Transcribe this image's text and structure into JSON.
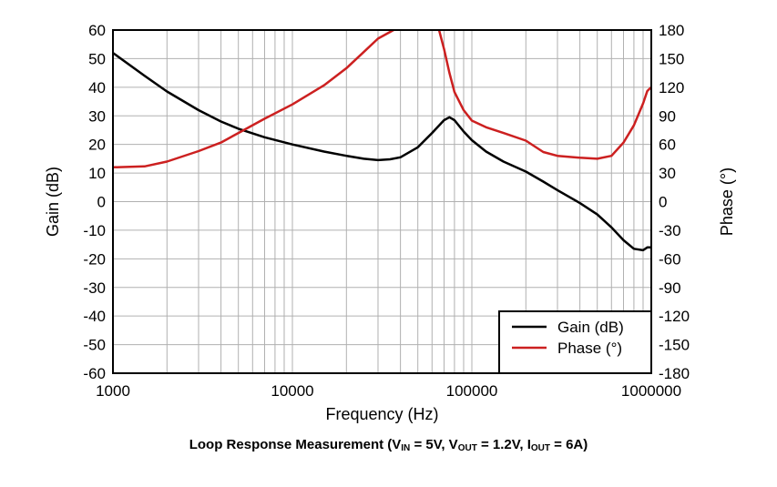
{
  "chart_data": {
    "type": "line",
    "x_scale": "log",
    "xlabel": "Frequency (Hz)",
    "ylabel": "Gain (dB)",
    "y2label": "Phase (°)",
    "xlim": [
      1000,
      1000000
    ],
    "ylim": [
      -60,
      60
    ],
    "y2lim": [
      -180,
      180
    ],
    "x_ticks": [
      1000,
      10000,
      100000,
      1000000
    ],
    "x_tick_labels": [
      "1000",
      "10000",
      "100000",
      "1000000"
    ],
    "y_ticks": [
      60,
      50,
      40,
      30,
      20,
      10,
      0,
      -10,
      -20,
      -30,
      -40,
      -50,
      -60
    ],
    "y_tick_labels": [
      "60",
      "50",
      "40",
      "30",
      "20",
      "10",
      "0",
      "-10",
      "-20",
      "-30",
      "-40",
      "-50",
      "-60"
    ],
    "y2_ticks": [
      180,
      150,
      120,
      90,
      60,
      30,
      0,
      -30,
      -60,
      -90,
      -120,
      -150,
      -180
    ],
    "y2_tick_labels": [
      "180",
      "150",
      "120",
      "90",
      "60",
      "30",
      "0",
      "-30",
      "-60",
      "-90",
      "-120",
      "-150",
      "-180"
    ],
    "grid": true,
    "legend_position": "bottom-right",
    "series": [
      {
        "name": "Gain (dB)",
        "axis": "left",
        "color": "#000000",
        "x": [
          1000,
          1500,
          2000,
          3000,
          4000,
          5000,
          7000,
          10000,
          15000,
          20000,
          25000,
          30000,
          35000,
          40000,
          50000,
          60000,
          70000,
          75000,
          80000,
          90000,
          100000,
          120000,
          150000,
          200000,
          250000,
          300000,
          400000,
          500000,
          600000,
          700000,
          800000,
          900000,
          950000,
          1000000
        ],
        "y": [
          52,
          44,
          38.5,
          32,
          28,
          25.5,
          22.5,
          20,
          17.5,
          16,
          15,
          14.5,
          14.8,
          15.5,
          19,
          24,
          28.5,
          29.5,
          28.5,
          24.5,
          21.5,
          17.5,
          14,
          10.5,
          7,
          4,
          -0.5,
          -4.5,
          -9,
          -13.5,
          -16.5,
          -17,
          -16,
          -16
        ]
      },
      {
        "name": "Phase (°)",
        "axis": "right",
        "color": "#cc2020",
        "x": [
          1000,
          1500,
          2000,
          3000,
          4000,
          5000,
          7000,
          10000,
          15000,
          20000,
          25000,
          30000,
          35000,
          40000,
          42000,
          64000,
          70000,
          75000,
          80000,
          90000,
          100000,
          120000,
          150000,
          200000,
          250000,
          300000,
          400000,
          500000,
          600000,
          700000,
          800000,
          900000,
          950000,
          1000000
        ],
        "y": [
          36,
          37,
          42,
          53,
          62,
          72,
          87,
          102,
          122,
          140,
          157,
          171,
          178,
          184,
          188,
          188,
          160,
          135,
          115,
          96,
          85,
          78,
          72,
          64,
          52,
          48,
          46,
          45,
          48,
          62,
          80,
          103,
          116,
          120
        ]
      }
    ]
  },
  "caption": {
    "prefix": "Loop Response Measurement (V",
    "vin_sub": "IN",
    "vin_val": " = 5V, V",
    "vout_sub": "OUT",
    "vout_val": " = 1.2V, I",
    "iout_sub": "OUT",
    "iout_val": " = 6A)"
  }
}
